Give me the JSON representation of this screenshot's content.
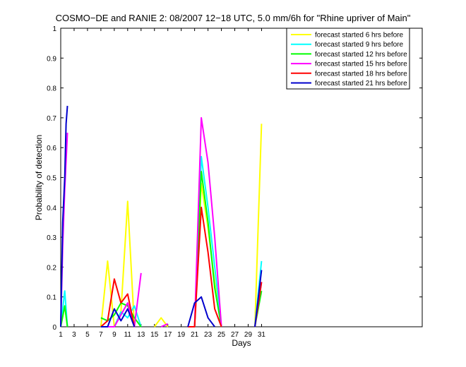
{
  "chart_data": {
    "type": "line",
    "title": "COSMO−DE and RANIE 2: 08/2007 12−18 UTC, 5.0 mm/6h for \"Rhine upriver of Main\"",
    "xlabel": "Days",
    "ylabel": "Probability of detection",
    "xlim": [
      1,
      55
    ],
    "ylim": [
      0,
      1
    ],
    "xticks": [
      1,
      3,
      5,
      7,
      9,
      11,
      13,
      15,
      17,
      19,
      21,
      23,
      25,
      27,
      29,
      31
    ],
    "yticks": [
      0,
      0.1,
      0.2,
      0.3,
      0.4,
      0.5,
      0.6,
      0.7,
      0.8,
      0.9,
      1
    ],
    "ytick_labels": [
      "0",
      "0.1",
      "0.2",
      "0.3",
      "0.4",
      "0.5",
      "0.6",
      "0.7",
      "0.8",
      "0.9",
      "1"
    ],
    "legend_position": "top-right",
    "series": [
      {
        "name": "forecast started 6 hrs before",
        "color": "#ffff00",
        "segments": [
          [
            [
              1,
              0.0
            ],
            [
              1.6,
              0.07
            ],
            [
              2,
              0.0
            ]
          ],
          [
            [
              7,
              0.0
            ],
            [
              8,
              0.22
            ],
            [
              9,
              0.0
            ],
            [
              10,
              0.05
            ],
            [
              11,
              0.42
            ],
            [
              12,
              0.0
            ]
          ],
          [
            [
              15,
              0.0
            ],
            [
              16,
              0.03
            ],
            [
              17,
              0.0
            ]
          ],
          [
            [
              20,
              0.0
            ],
            [
              21,
              0.0
            ],
            [
              22,
              0.48
            ],
            [
              23,
              0.33
            ],
            [
              24,
              0.15
            ],
            [
              25,
              0.0
            ]
          ],
          [
            [
              30,
              0.0
            ],
            [
              31,
              0.68
            ]
          ]
        ]
      },
      {
        "name": "forecast started 9 hrs before",
        "color": "#00ffff",
        "segments": [
          [
            [
              1,
              0.0
            ],
            [
              1.6,
              0.12
            ],
            [
              2,
              0.0
            ]
          ],
          [
            [
              7,
              0.0
            ],
            [
              9,
              0.0
            ],
            [
              10,
              0.05
            ],
            [
              11,
              0.03
            ],
            [
              12,
              0.07
            ],
            [
              13,
              0.0
            ]
          ],
          [
            [
              20,
              0.0
            ],
            [
              21,
              0.0
            ],
            [
              22,
              0.57
            ],
            [
              23,
              0.4
            ],
            [
              24,
              0.2
            ],
            [
              25,
              0.0
            ]
          ],
          [
            [
              30,
              0.0
            ],
            [
              31,
              0.22
            ]
          ]
        ]
      },
      {
        "name": "forecast started 12 hrs before",
        "color": "#00ff00",
        "segments": [
          [
            [
              1,
              0.0
            ],
            [
              1.6,
              0.07
            ],
            [
              2,
              0.0
            ]
          ],
          [
            [
              7,
              0.03
            ],
            [
              8,
              0.02
            ],
            [
              9,
              0.04
            ],
            [
              10,
              0.08
            ],
            [
              11,
              0.07
            ],
            [
              12,
              0.03
            ],
            [
              13,
              0.0
            ]
          ],
          [
            [
              20,
              0.0
            ],
            [
              21,
              0.0
            ],
            [
              22,
              0.52
            ],
            [
              23,
              0.35
            ],
            [
              24,
              0.13
            ],
            [
              25,
              0.0
            ]
          ],
          [
            [
              30,
              0.0
            ],
            [
              31,
              0.12
            ]
          ]
        ]
      },
      {
        "name": "forecast started 15 hrs before",
        "color": "#ff00ff",
        "segments": [
          [
            [
              1,
              0.0
            ],
            [
              1.3,
              0.27
            ],
            [
              1.6,
              0.46
            ],
            [
              2,
              0.65
            ]
          ],
          [
            [
              8,
              0.0
            ],
            [
              9,
              0.0
            ],
            [
              10,
              0.04
            ],
            [
              11,
              0.08
            ],
            [
              12,
              0.0
            ],
            [
              13,
              0.18
            ]
          ],
          [
            [
              16,
              0.0
            ],
            [
              17,
              0.01
            ]
          ],
          [
            [
              20,
              0.0
            ],
            [
              21,
              0.0
            ],
            [
              22,
              0.7
            ],
            [
              23,
              0.55
            ],
            [
              24,
              0.3
            ],
            [
              25,
              0.0
            ]
          ],
          [
            [
              30,
              0.0
            ],
            [
              31,
              0.15
            ]
          ]
        ]
      },
      {
        "name": "forecast started 18 hrs before",
        "color": "#ff0000",
        "segments": [
          [
            [
              7,
              0.0
            ],
            [
              8,
              0.02
            ],
            [
              9,
              0.16
            ],
            [
              10,
              0.08
            ],
            [
              11,
              0.11
            ],
            [
              12,
              0.0
            ]
          ],
          [
            [
              20,
              0.0
            ],
            [
              21,
              0.0
            ],
            [
              22,
              0.4
            ],
            [
              23,
              0.25
            ],
            [
              24,
              0.06
            ],
            [
              25,
              0.0
            ]
          ],
          [
            [
              30,
              0.0
            ],
            [
              31,
              0.15
            ]
          ]
        ]
      },
      {
        "name": "forecast started 21 hrs before",
        "color": "#0000cc",
        "segments": [
          [
            [
              1,
              0.0
            ],
            [
              1.3,
              0.35
            ],
            [
              1.6,
              0.5
            ],
            [
              1.8,
              0.68
            ],
            [
              2,
              0.74
            ]
          ],
          [
            [
              7,
              0.0
            ],
            [
              8,
              0.0
            ],
            [
              9,
              0.06
            ],
            [
              10,
              0.02
            ],
            [
              11,
              0.06
            ],
            [
              12,
              0.0
            ]
          ],
          [
            [
              20,
              0.0
            ],
            [
              21,
              0.08
            ],
            [
              22,
              0.1
            ],
            [
              23,
              0.03
            ],
            [
              24,
              0.0
            ]
          ],
          [
            [
              30,
              0.0
            ],
            [
              31,
              0.19
            ]
          ]
        ]
      }
    ]
  }
}
